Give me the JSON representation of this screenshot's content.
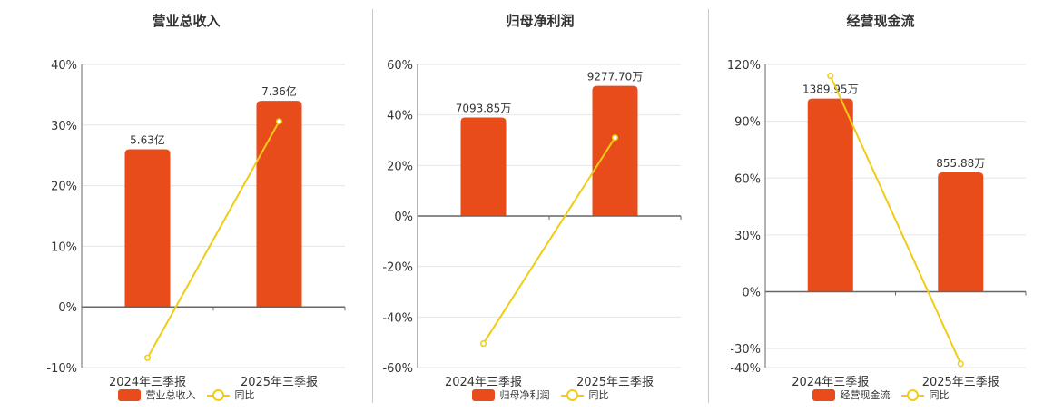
{
  "colors": {
    "bar": "#e84c1a",
    "line": "#f0cc16",
    "grid": "#e6e6e6",
    "axis": "#666666"
  },
  "chart_data": [
    {
      "type": "bar",
      "title": "营业总收入",
      "categories": [
        "2024年三季报",
        "2025年三季报"
      ],
      "series": [
        {
          "name": "营业总收入",
          "type": "bar",
          "values": [
            26,
            34
          ],
          "labels": [
            "5.63亿",
            "7.36亿"
          ]
        },
        {
          "name": "同比",
          "type": "line",
          "values": [
            -8.4,
            30.6
          ]
        }
      ],
      "ylim": [
        -10,
        40
      ],
      "yticks": [
        -10,
        0,
        10,
        20,
        30,
        40
      ],
      "ytick_labels": [
        "-10%",
        "0%",
        "10%",
        "20%",
        "30%",
        "40%"
      ],
      "grid": true,
      "legend": "bottom"
    },
    {
      "type": "bar",
      "title": "归母净利润",
      "categories": [
        "2024年三季报",
        "2025年三季报"
      ],
      "series": [
        {
          "name": "归母净利润",
          "type": "bar",
          "values": [
            39,
            51.5
          ],
          "labels": [
            "7093.85万",
            "9277.70万"
          ]
        },
        {
          "name": "同比",
          "type": "line",
          "values": [
            -50.5,
            31
          ]
        }
      ],
      "ylim": [
        -60,
        60
      ],
      "yticks": [
        -60,
        -40,
        -20,
        0,
        20,
        40,
        60
      ],
      "ytick_labels": [
        "-60%",
        "-40%",
        "-20%",
        "0%",
        "20%",
        "40%",
        "60%"
      ],
      "grid": true,
      "legend": "bottom"
    },
    {
      "type": "bar",
      "title": "经营现金流",
      "categories": [
        "2024年三季报",
        "2025年三季报"
      ],
      "series": [
        {
          "name": "经营现金流",
          "type": "bar",
          "values": [
            102,
            63
          ],
          "labels": [
            "1389.95万",
            "855.88万"
          ]
        },
        {
          "name": "同比",
          "type": "line",
          "values": [
            114,
            -38
          ]
        }
      ],
      "ylim": [
        -40,
        120
      ],
      "yticks": [
        -40,
        -30,
        0,
        30,
        60,
        90,
        120
      ],
      "ytick_labels": [
        "-40%",
        "-30%",
        "0%",
        "30%",
        "60%",
        "90%",
        "120%"
      ],
      "grid": true,
      "legend": "bottom"
    }
  ]
}
